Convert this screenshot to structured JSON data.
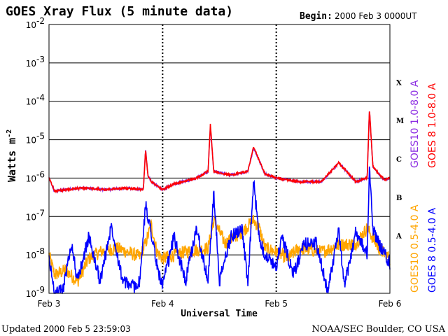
{
  "title": "GOES Xray Flux (5 minute data)",
  "begin_label": "Begin:",
  "begin_value": "2000 Feb 3 0000UT",
  "updated_label": "Updated",
  "updated_value": "2000 Feb  5 23:59:03",
  "credit": "NOAA/SEC Boulder, CO USA",
  "chart_data": {
    "type": "line",
    "title": "GOES Xray Flux (5 minute data)",
    "xlabel": "Universal Time",
    "ylabel": "Watts m-2",
    "ylabel_display": [
      "Watts m",
      "-2"
    ],
    "yscale": "log",
    "ylim": [
      1e-09,
      0.01
    ],
    "xlim_days": [
      0,
      3
    ],
    "x_tick_labels": [
      "Feb 3",
      "Feb 4",
      "Feb 5",
      "Feb 6"
    ],
    "y_tick_labels": [
      {
        "base": "10",
        "exp": "-9"
      },
      {
        "base": "10",
        "exp": "-8"
      },
      {
        "base": "10",
        "exp": "-7"
      },
      {
        "base": "10",
        "exp": "-6"
      },
      {
        "base": "10",
        "exp": "-5"
      },
      {
        "base": "10",
        "exp": "-4"
      },
      {
        "base": "10",
        "exp": "-3"
      },
      {
        "base": "10",
        "exp": "-2"
      }
    ],
    "flare_classes": [
      "A",
      "B",
      "C",
      "M",
      "X"
    ],
    "grid": true,
    "legend_position": "right (vertical)",
    "series": [
      {
        "name": "GOES10 0.5-4.0 A",
        "color": "#ffa500",
        "knots": [
          [
            0,
            1e-08
          ],
          [
            0.05,
            3e-09
          ],
          [
            0.15,
            4e-09
          ],
          [
            0.25,
            2e-09
          ],
          [
            0.35,
            8e-09
          ],
          [
            0.45,
            1.2e-08
          ],
          [
            0.6,
            1.5e-08
          ],
          [
            0.8,
            9e-09
          ],
          [
            0.85,
            2e-08
          ],
          [
            0.9,
            6e-08
          ],
          [
            0.95,
            1.2e-08
          ],
          [
            1.0,
            8e-09
          ],
          [
            1.2,
            1.2e-08
          ],
          [
            1.4,
            1.5e-08
          ],
          [
            1.45,
            8e-08
          ],
          [
            1.55,
            2e-08
          ],
          [
            1.7,
            4e-08
          ],
          [
            1.8,
            8e-08
          ],
          [
            1.85,
            5e-08
          ],
          [
            1.9,
            1.5e-08
          ],
          [
            2.0,
            1.2e-08
          ],
          [
            2.1,
            8e-09
          ],
          [
            2.2,
            1.5e-08
          ],
          [
            2.4,
            1.2e-08
          ],
          [
            2.55,
            1.8e-08
          ],
          [
            2.7,
            2e-08
          ],
          [
            2.8,
            5e-08
          ],
          [
            2.9,
            1.5e-08
          ],
          [
            3.0,
            8e-09
          ]
        ]
      },
      {
        "name": "GOES10 1.0-8.0 A",
        "color": "#8b2be2",
        "knots": [
          [
            0,
            1e-06
          ],
          [
            0.05,
            4.5e-07
          ],
          [
            0.15,
            5e-07
          ],
          [
            0.3,
            5.5e-07
          ],
          [
            0.5,
            5e-07
          ],
          [
            0.7,
            5.5e-07
          ],
          [
            0.83,
            5e-07
          ],
          [
            0.85,
            5.5e-06
          ],
          [
            0.87,
            1.2e-06
          ],
          [
            0.9,
            8e-07
          ],
          [
            1.0,
            5e-07
          ],
          [
            1.1,
            7e-07
          ],
          [
            1.3,
            1e-06
          ],
          [
            1.4,
            1.5e-06
          ],
          [
            1.42,
            2.2e-05
          ],
          [
            1.45,
            1.5e-06
          ],
          [
            1.6,
            1.2e-06
          ],
          [
            1.75,
            1.5e-06
          ],
          [
            1.8,
            6e-06
          ],
          [
            1.9,
            1.3e-06
          ],
          [
            2.0,
            1e-06
          ],
          [
            2.2,
            8e-07
          ],
          [
            2.4,
            8e-07
          ],
          [
            2.55,
            2.5e-06
          ],
          [
            2.7,
            8e-07
          ],
          [
            2.8,
            1e-06
          ],
          [
            2.82,
            6e-05
          ],
          [
            2.85,
            2e-06
          ],
          [
            2.95,
            9e-07
          ],
          [
            3.0,
            1e-06
          ]
        ]
      },
      {
        "name": "GOES 8 0.5-4.0 A",
        "color": "#0000ff",
        "knots": [
          [
            0,
            8e-09
          ],
          [
            0.05,
            1e-09
          ],
          [
            0.12,
            1.2e-09
          ],
          [
            0.2,
            2e-08
          ],
          [
            0.25,
            2e-09
          ],
          [
            0.35,
            3e-08
          ],
          [
            0.45,
            2e-09
          ],
          [
            0.55,
            6e-08
          ],
          [
            0.65,
            2e-09
          ],
          [
            0.75,
            1.5e-09
          ],
          [
            0.8,
            2e-09
          ],
          [
            0.85,
            2e-07
          ],
          [
            0.9,
            4e-08
          ],
          [
            0.95,
            5e-09
          ],
          [
            1.0,
            1.5e-09
          ],
          [
            1.1,
            3e-08
          ],
          [
            1.2,
            2e-09
          ],
          [
            1.3,
            5e-08
          ],
          [
            1.4,
            2e-09
          ],
          [
            1.45,
            4e-07
          ],
          [
            1.5,
            2e-09
          ],
          [
            1.6,
            3e-08
          ],
          [
            1.7,
            5e-08
          ],
          [
            1.75,
            1.5e-09
          ],
          [
            1.8,
            8e-07
          ],
          [
            1.85,
            3e-08
          ],
          [
            1.9,
            1e-08
          ],
          [
            2.0,
            5e-09
          ],
          [
            2.05,
            3e-08
          ],
          [
            2.15,
            3e-09
          ],
          [
            2.25,
            2e-08
          ],
          [
            2.35,
            2e-08
          ],
          [
            2.45,
            1.2e-09
          ],
          [
            2.55,
            4e-08
          ],
          [
            2.6,
            1.5e-09
          ],
          [
            2.7,
            4e-08
          ],
          [
            2.8,
            1e-08
          ],
          [
            2.82,
            2e-06
          ],
          [
            2.85,
            5e-08
          ],
          [
            2.9,
            2e-08
          ],
          [
            3.0,
            6e-09
          ]
        ]
      },
      {
        "name": "GOES 8 1.0-8.0 A",
        "color": "#ff0000",
        "knots": [
          [
            0,
            1e-06
          ],
          [
            0.05,
            4.5e-07
          ],
          [
            0.15,
            5e-07
          ],
          [
            0.3,
            5.5e-07
          ],
          [
            0.5,
            5e-07
          ],
          [
            0.7,
            5.5e-07
          ],
          [
            0.83,
            5e-07
          ],
          [
            0.85,
            5.5e-06
          ],
          [
            0.87,
            1.2e-06
          ],
          [
            0.9,
            8e-07
          ],
          [
            1.0,
            5e-07
          ],
          [
            1.1,
            7e-07
          ],
          [
            1.3,
            1e-06
          ],
          [
            1.4,
            1.5e-06
          ],
          [
            1.42,
            2.5e-05
          ],
          [
            1.45,
            1.5e-06
          ],
          [
            1.6,
            1.2e-06
          ],
          [
            1.75,
            1.5e-06
          ],
          [
            1.8,
            6.5e-06
          ],
          [
            1.9,
            1.3e-06
          ],
          [
            2.0,
            1e-06
          ],
          [
            2.2,
            8e-07
          ],
          [
            2.4,
            8e-07
          ],
          [
            2.55,
            2.5e-06
          ],
          [
            2.7,
            8e-07
          ],
          [
            2.8,
            1e-06
          ],
          [
            2.82,
            6.5e-05
          ],
          [
            2.85,
            2e-06
          ],
          [
            2.95,
            9e-07
          ],
          [
            3.0,
            1e-06
          ]
        ]
      }
    ]
  }
}
